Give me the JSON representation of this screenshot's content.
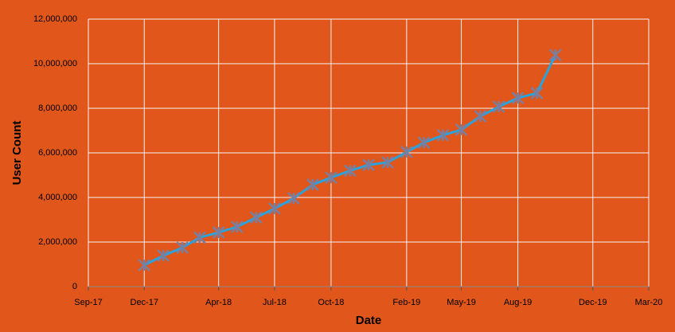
{
  "chart_data": {
    "type": "line",
    "x_label": "Date",
    "y_label": "User Count",
    "x": [
      "2017-12",
      "2018-01",
      "2018-02",
      "2018-03",
      "2018-04",
      "2018-05",
      "2018-06",
      "2018-07",
      "2018-08",
      "2018-09",
      "2018-10",
      "2018-11",
      "2018-12",
      "2019-01",
      "2019-02",
      "2019-03",
      "2019-04",
      "2019-05",
      "2019-06",
      "2019-07",
      "2019-08",
      "2019-09",
      "2019-10"
    ],
    "series": [
      {
        "name": "User Count",
        "color": "#2aa3dc",
        "values": [
          960000,
          1390000,
          1750000,
          2200000,
          2430000,
          2680000,
          3100000,
          3500000,
          3960000,
          4570000,
          4890000,
          5200000,
          5460000,
          5570000,
          6040000,
          6460000,
          6790000,
          7040000,
          7640000,
          8070000,
          8460000,
          8680000,
          10390000
        ]
      }
    ],
    "xlim": [
      "2017-09",
      "2020-03"
    ],
    "xticks": [
      {
        "value": "2017-09",
        "label": "Sep-17"
      },
      {
        "value": "2017-12",
        "label": "Dec-17"
      },
      {
        "value": "2018-04",
        "label": "Apr-18"
      },
      {
        "value": "2018-07",
        "label": "Jul-18"
      },
      {
        "value": "2018-10",
        "label": "Oct-18"
      },
      {
        "value": "2019-02",
        "label": "Feb-19"
      },
      {
        "value": "2019-05",
        "label": "May-19"
      },
      {
        "value": "2019-08",
        "label": "Aug-19"
      },
      {
        "value": "2019-12",
        "label": "Dec-19"
      },
      {
        "value": "2020-03",
        "label": "Mar-20"
      }
    ],
    "ylim": [
      0,
      12000000
    ],
    "yticks": [
      0,
      {
        "value": 2000000,
        "label": "2,000,000"
      },
      {
        "value": 4000000,
        "label": "4,000,000"
      },
      {
        "value": 6000000,
        "label": "6,000,000"
      },
      {
        "value": 8000000,
        "label": "8,000,000"
      },
      {
        "value": 10000000,
        "label": "10,000,000"
      },
      {
        "value": 12000000,
        "label": "12,000,000"
      }
    ],
    "grid": true,
    "background": "#e0561b"
  }
}
